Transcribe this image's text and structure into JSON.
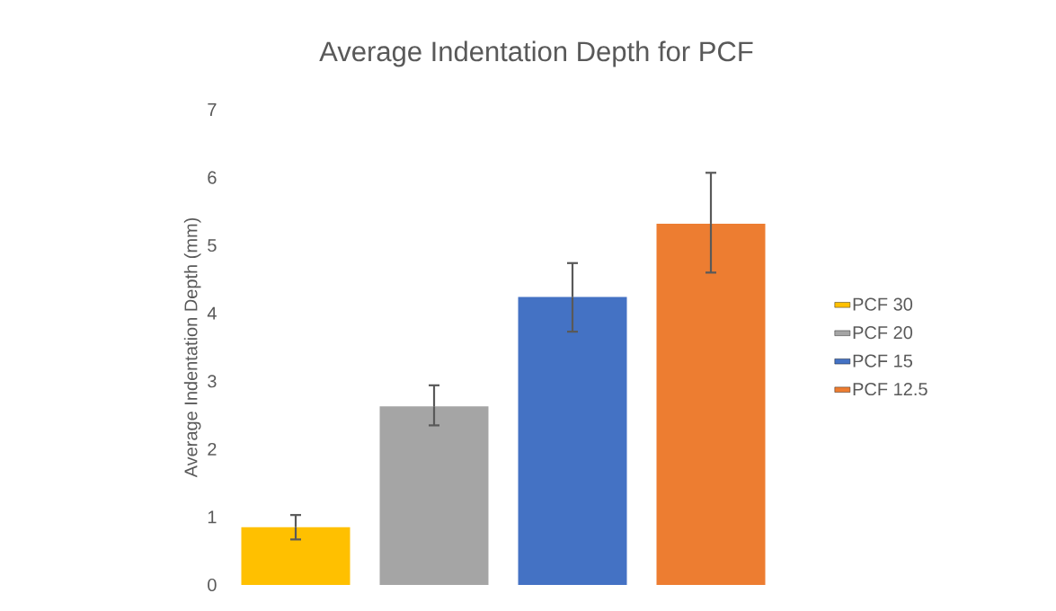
{
  "chart_data": {
    "type": "bar",
    "title": "Average Indentation Depth for PCF",
    "ylabel": "Average Indentation Depth (mm)",
    "categories": [
      null
    ],
    "series": [
      {
        "name": "PCF 30",
        "color": "#ffc000",
        "values": [
          0.85
        ],
        "errors": [
          [
            0.67,
            1.03
          ]
        ]
      },
      {
        "name": "PCF 20",
        "color": "#a5a5a5",
        "values": [
          2.63
        ],
        "errors": [
          [
            2.35,
            2.94
          ]
        ]
      },
      {
        "name": "PCF 15",
        "color": "#4472c4",
        "values": [
          4.24
        ],
        "errors": [
          [
            3.73,
            4.74
          ]
        ]
      },
      {
        "name": "PCF 12.5",
        "color": "#ed7d31",
        "values": [
          5.32
        ],
        "errors": [
          [
            4.6,
            6.07
          ]
        ]
      }
    ],
    "ylim": [
      0,
      7
    ],
    "yticks": [
      0,
      1,
      2,
      3,
      4,
      5,
      6,
      7
    ],
    "grid": false,
    "legend": "right"
  }
}
